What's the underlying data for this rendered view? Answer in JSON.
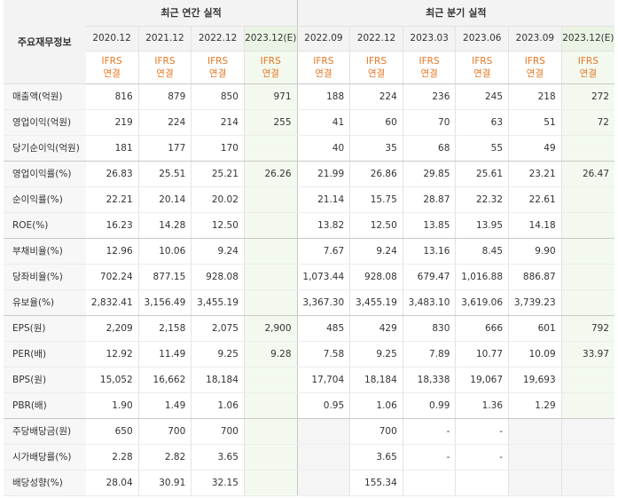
{
  "header": {
    "row_label": "주요재무정보",
    "annual_title": "최근 연간 실적",
    "quarter_title": "최근 분기 실적",
    "standard_line1": "IFRS",
    "standard_line2": "연결",
    "annual_periods": [
      "2020.12",
      "2021.12",
      "2022.12",
      "2023.12(E)"
    ],
    "quarter_periods": [
      "2022.09",
      "2022.12",
      "2023.03",
      "2023.06",
      "2023.09",
      "2023.12(E)"
    ]
  },
  "rows": [
    {
      "label": "매출액(억원)",
      "annual": [
        "816",
        "879",
        "850",
        "971"
      ],
      "quarter": [
        "188",
        "224",
        "236",
        "245",
        "218",
        "272"
      ]
    },
    {
      "label": "영업이익(억원)",
      "annual": [
        "219",
        "224",
        "214",
        "255"
      ],
      "quarter": [
        "41",
        "60",
        "70",
        "63",
        "51",
        "72"
      ]
    },
    {
      "label": "당기순이익(억원)",
      "annual": [
        "181",
        "177",
        "170",
        ""
      ],
      "quarter": [
        "40",
        "35",
        "68",
        "55",
        "49",
        ""
      ]
    },
    {
      "label": "영업이익률(%)",
      "annual": [
        "26.83",
        "25.51",
        "25.21",
        "26.26"
      ],
      "quarter": [
        "21.99",
        "26.86",
        "29.85",
        "25.61",
        "23.21",
        "26.47"
      ]
    },
    {
      "label": "순이익률(%)",
      "annual": [
        "22.21",
        "20.14",
        "20.02",
        ""
      ],
      "quarter": [
        "21.14",
        "15.75",
        "28.87",
        "22.32",
        "22.61",
        ""
      ]
    },
    {
      "label": "ROE(%)",
      "annual": [
        "16.23",
        "14.28",
        "12.50",
        ""
      ],
      "quarter": [
        "13.82",
        "12.50",
        "13.85",
        "13.95",
        "14.18",
        ""
      ]
    },
    {
      "label": "부채비율(%)",
      "annual": [
        "12.96",
        "10.06",
        "9.24",
        ""
      ],
      "quarter": [
        "7.67",
        "9.24",
        "13.16",
        "8.45",
        "9.90",
        ""
      ]
    },
    {
      "label": "당좌비율(%)",
      "annual": [
        "702.24",
        "877.15",
        "928.08",
        ""
      ],
      "quarter": [
        "1,073.44",
        "928.08",
        "679.47",
        "1,016.88",
        "886.87",
        ""
      ]
    },
    {
      "label": "유보율(%)",
      "annual": [
        "2,832.41",
        "3,156.49",
        "3,455.19",
        ""
      ],
      "quarter": [
        "3,367.30",
        "3,455.19",
        "3,483.10",
        "3,619.06",
        "3,739.23",
        ""
      ]
    },
    {
      "label": "EPS(원)",
      "annual": [
        "2,209",
        "2,158",
        "2,075",
        "2,900"
      ],
      "quarter": [
        "485",
        "429",
        "830",
        "666",
        "601",
        "792"
      ]
    },
    {
      "label": "PER(배)",
      "annual": [
        "12.92",
        "11.49",
        "9.25",
        "9.28"
      ],
      "quarter": [
        "7.58",
        "9.25",
        "7.89",
        "10.77",
        "10.09",
        "33.97"
      ]
    },
    {
      "label": "BPS(원)",
      "annual": [
        "15,052",
        "16,662",
        "18,184",
        ""
      ],
      "quarter": [
        "17,704",
        "18,184",
        "18,338",
        "19,067",
        "19,693",
        ""
      ]
    },
    {
      "label": "PBR(배)",
      "annual": [
        "1.90",
        "1.49",
        "1.06",
        ""
      ],
      "quarter": [
        "0.95",
        "1.06",
        "0.99",
        "1.36",
        "1.29",
        ""
      ]
    },
    {
      "label": "주당배당금(원)",
      "annual": [
        "650",
        "700",
        "700",
        ""
      ],
      "quarter": [
        "",
        "700",
        "-",
        "-",
        "",
        ""
      ]
    },
    {
      "label": "시가배당률(%)",
      "annual": [
        "2.28",
        "2.82",
        "3.65",
        ""
      ],
      "quarter": [
        "",
        "3.65",
        "-",
        "-",
        "",
        ""
      ]
    },
    {
      "label": "배당성향(%)",
      "annual": [
        "28.04",
        "30.91",
        "32.15",
        ""
      ],
      "quarter": [
        "",
        "155.34",
        "",
        "",
        "",
        ""
      ]
    }
  ]
}
